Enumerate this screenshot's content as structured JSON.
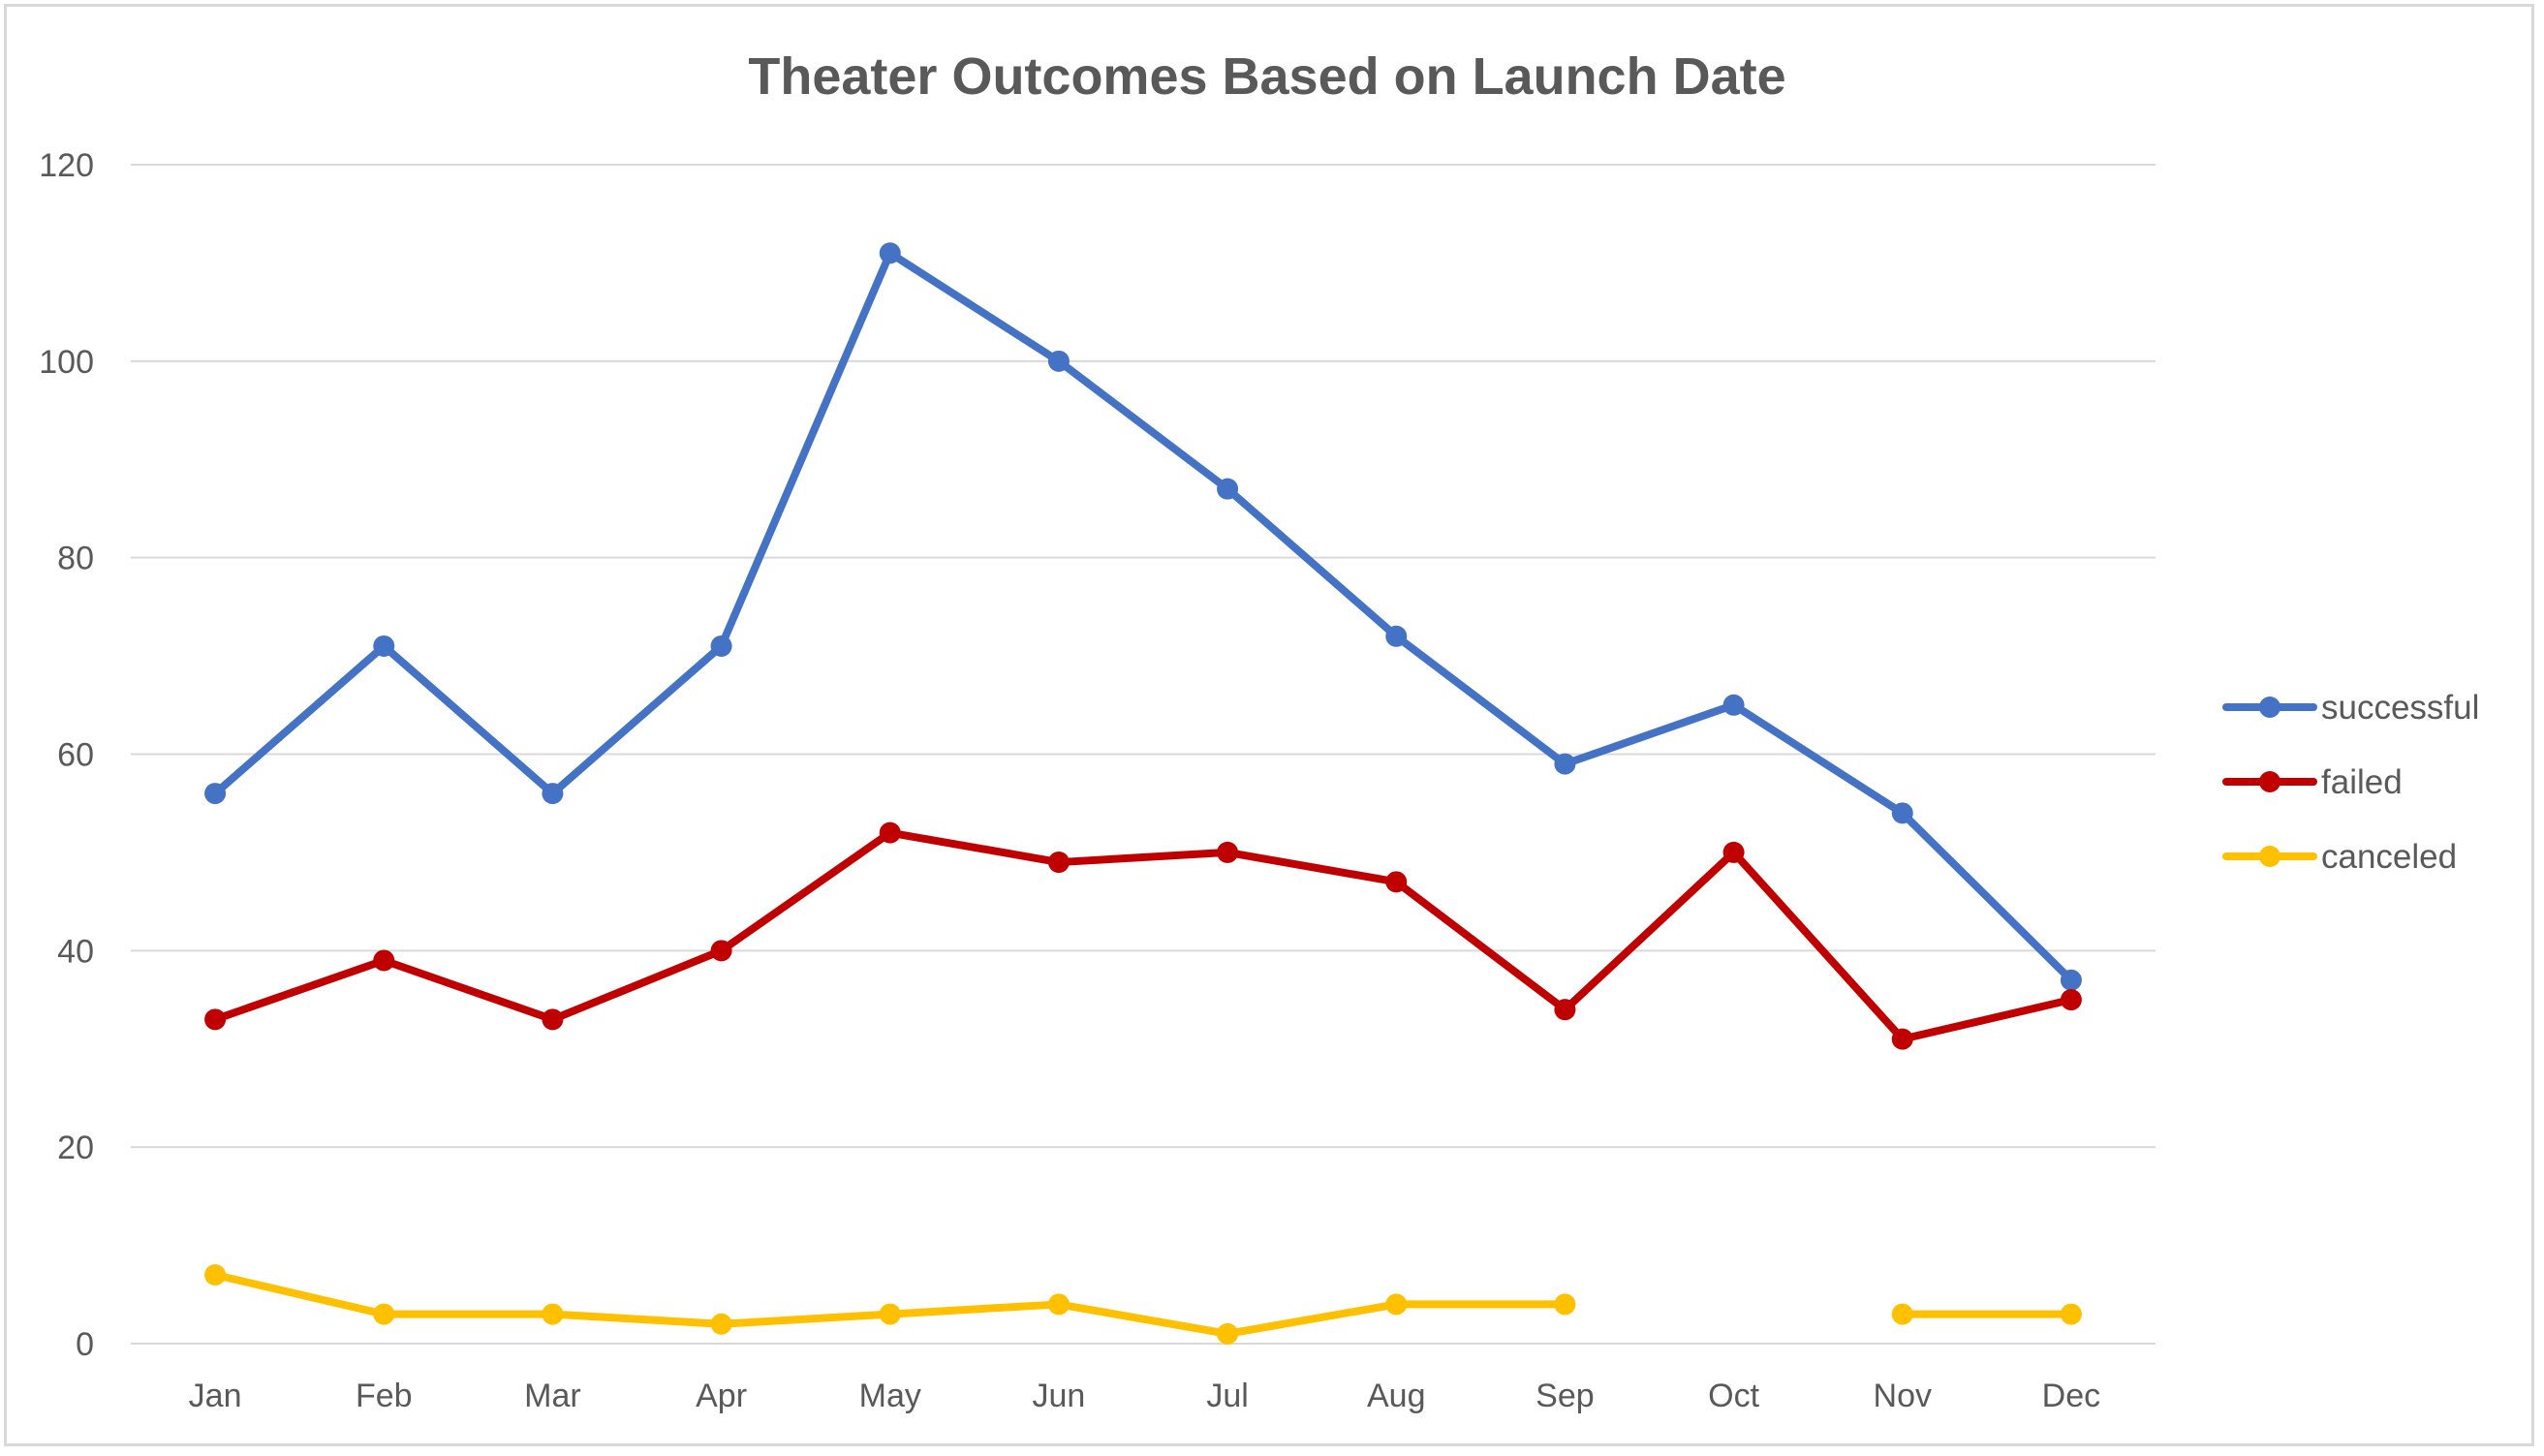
{
  "chart_data": {
    "type": "line",
    "title": "Theater Outcomes Based on Launch Date",
    "xlabel": "",
    "ylabel": "",
    "categories": [
      "Jan",
      "Feb",
      "Mar",
      "Apr",
      "May",
      "Jun",
      "Jul",
      "Aug",
      "Sep",
      "Oct",
      "Nov",
      "Dec"
    ],
    "ylim": [
      0,
      120
    ],
    "yticks": [
      "0",
      "20",
      "40",
      "60",
      "80",
      "100",
      "120"
    ],
    "grid": true,
    "legend_position": "right",
    "series": [
      {
        "name": "successful",
        "color": "#4472C4",
        "values": [
          56,
          71,
          56,
          71,
          111,
          100,
          87,
          72,
          59,
          65,
          54,
          37
        ]
      },
      {
        "name": "failed",
        "color": "#C00000",
        "values": [
          33,
          39,
          33,
          40,
          52,
          49,
          50,
          47,
          34,
          50,
          31,
          35
        ]
      },
      {
        "name": "canceled",
        "color": "#FFC000",
        "values": [
          7,
          3,
          3,
          2,
          3,
          4,
          1,
          4,
          4,
          null,
          3,
          3
        ]
      }
    ]
  }
}
